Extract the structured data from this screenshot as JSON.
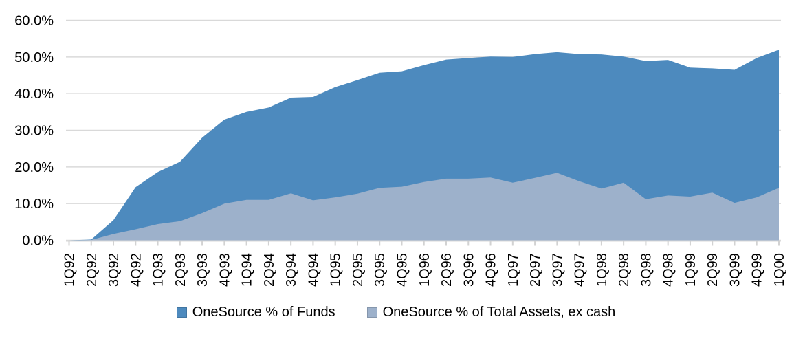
{
  "chart_data": {
    "type": "area",
    "title": "",
    "xlabel": "",
    "ylabel": "",
    "categories": [
      "1Q92",
      "2Q92",
      "3Q92",
      "4Q92",
      "1Q93",
      "2Q93",
      "3Q93",
      "4Q93",
      "1Q94",
      "2Q94",
      "3Q94",
      "4Q94",
      "1Q95",
      "2Q95",
      "3Q95",
      "4Q95",
      "1Q96",
      "2Q96",
      "3Q96",
      "4Q96",
      "1Q97",
      "2Q97",
      "3Q97",
      "4Q97",
      "1Q98",
      "2Q98",
      "3Q98",
      "4Q98",
      "1Q99",
      "2Q99",
      "3Q99",
      "4Q99",
      "1Q00"
    ],
    "series": [
      {
        "name": "OneSource % of Funds",
        "color": "#4D8ABE",
        "values": [
          0.0,
          0.2,
          5.5,
          14.5,
          18.6,
          21.4,
          28.0,
          32.9,
          35.0,
          36.2,
          38.9,
          39.1,
          41.8,
          43.7,
          45.7,
          46.1,
          47.8,
          49.3,
          49.7,
          50.1,
          50.0,
          50.8,
          51.3,
          50.8,
          50.7,
          50.1,
          48.9,
          49.2,
          47.1,
          46.9,
          46.5,
          49.7,
          52.0
        ]
      },
      {
        "name": "OneSource % of Total Assets, ex cash",
        "color": "#9DB1CB",
        "values": [
          0.0,
          0.1,
          1.7,
          3.0,
          4.4,
          5.2,
          7.4,
          10.0,
          11.0,
          11.0,
          12.8,
          10.9,
          11.7,
          12.7,
          14.3,
          14.6,
          15.9,
          16.8,
          16.8,
          17.1,
          15.7,
          17.0,
          18.4,
          16.1,
          14.1,
          15.7,
          11.2,
          12.2,
          11.9,
          13.0,
          10.2,
          11.7,
          14.3
        ]
      }
    ],
    "mode": "overlay",
    "ylim": [
      0,
      60
    ],
    "yticks": [
      "0.0%",
      "10.0%",
      "20.0%",
      "30.0%",
      "40.0%",
      "50.0%",
      "60.0%"
    ],
    "grid": true,
    "legend_position": "bottom"
  },
  "colors": {
    "gridline": "#D9D9D9",
    "axis_line": "#D9D9D9",
    "tick_mark": "#D2D2D2",
    "label_text": "#000000",
    "background": "#FFFFFF"
  }
}
